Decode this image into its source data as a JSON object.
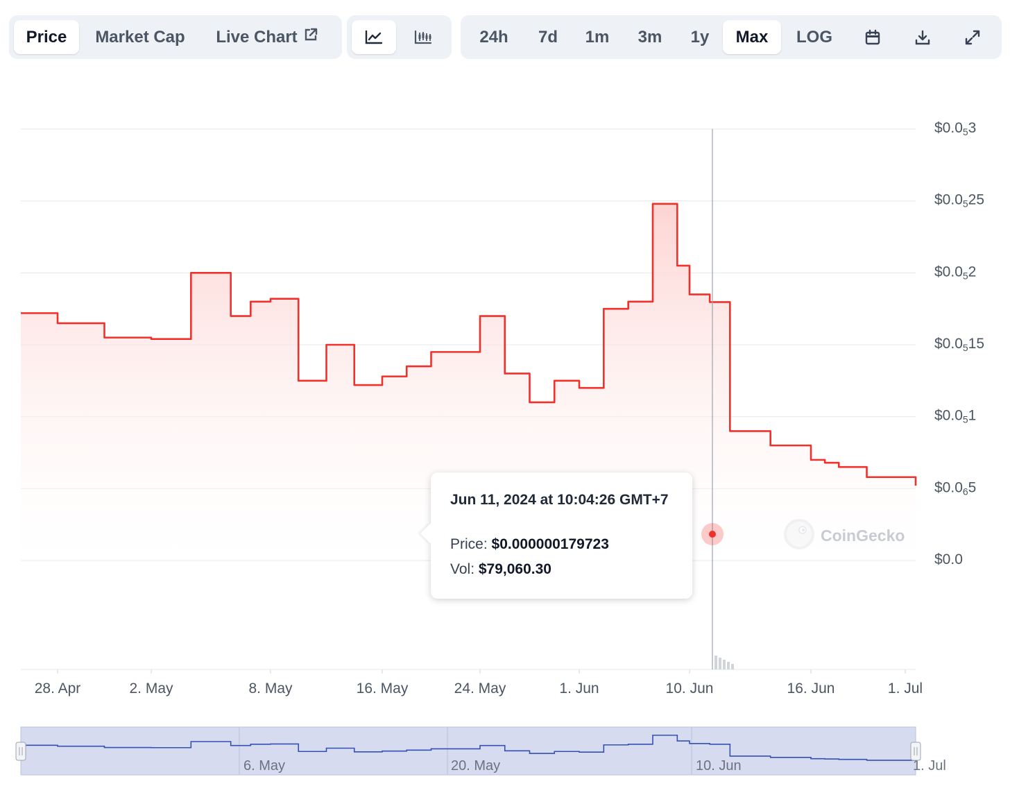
{
  "toolbar": {
    "view_tabs": [
      {
        "label": "Price",
        "active": true
      },
      {
        "label": "Market Cap",
        "active": false
      },
      {
        "label": "Live Chart",
        "active": false
      }
    ],
    "chart_type_icons": [
      {
        "icon": "line-chart-icon",
        "active": true
      },
      {
        "icon": "candlestick-chart-icon",
        "active": false
      }
    ],
    "ranges": [
      {
        "label": "24h",
        "active": false
      },
      {
        "label": "7d",
        "active": false
      },
      {
        "label": "1m",
        "active": false
      },
      {
        "label": "3m",
        "active": false
      },
      {
        "label": "1y",
        "active": false
      },
      {
        "label": "Max",
        "active": true
      },
      {
        "label": "LOG",
        "active": false
      }
    ],
    "tool_icons": [
      "calendar-icon",
      "download-icon",
      "expand-icon"
    ]
  },
  "tooltip": {
    "date": "Jun 11, 2024 at 10:04:26 GMT+7",
    "price_label": "Price:",
    "price_value": "$0.000000179723",
    "vol_label": "Vol:",
    "vol_value": "$79,060.30"
  },
  "watermark": "CoinGecko",
  "colors": {
    "line": "#f0302b",
    "fill_top": "#fdd2d0",
    "navigator_fill": "#d6dbef",
    "navigator_line": "#3350b4",
    "axis_text": "#4b5563"
  },
  "chart_data": {
    "type": "area",
    "series": [
      {
        "x_dates": [
          "2024-04-26",
          "2024-04-28",
          "2024-04-30",
          "2024-05-02",
          "2024-05-04",
          "2024-05-06",
          "2024-05-07",
          "2024-05-08",
          "2024-05-10",
          "2024-05-12",
          "2024-05-14",
          "2024-05-16",
          "2024-05-18",
          "2024-05-20",
          "2024-05-22",
          "2024-05-24",
          "2024-05-26",
          "2024-05-28",
          "2024-05-30",
          "2024-06-01",
          "2024-06-03",
          "2024-06-05",
          "2024-06-07",
          "2024-06-09",
          "2024-06-10",
          "2024-06-11",
          "2024-06-12",
          "2024-06-14",
          "2024-06-16",
          "2024-06-18",
          "2024-06-20",
          "2024-06-24",
          "2024-07-01"
        ],
        "values_note": "price in units of 1e-7 USD",
        "values": [
          1.72,
          1.65,
          1.55,
          1.54,
          2.0,
          1.7,
          1.8,
          1.82,
          1.25,
          1.5,
          1.22,
          1.28,
          1.35,
          1.45,
          1.45,
          1.7,
          1.3,
          1.1,
          1.25,
          1.2,
          1.75,
          1.8,
          2.48,
          2.05,
          1.85,
          1.797,
          0.9,
          0.8,
          0.7,
          0.68,
          0.65,
          0.58,
          0.52
        ]
      }
    ],
    "highlight_point": {
      "date": "Jun 11, 2024 at 10:04:26 GMT+7",
      "price": "$0.000000179723",
      "vol": "$79,060.30"
    },
    "y_tick_labels": [
      {
        "lead": "$0.0",
        "sub": "",
        "tail": ""
      },
      {
        "lead": "$0.0",
        "sub": "6",
        "tail": "5"
      },
      {
        "lead": "$0.0",
        "sub": "5",
        "tail": "1"
      },
      {
        "lead": "$0.0",
        "sub": "5",
        "tail": "15"
      },
      {
        "lead": "$0.0",
        "sub": "5",
        "tail": "2"
      },
      {
        "lead": "$0.0",
        "sub": "5",
        "tail": "25"
      },
      {
        "lead": "$0.0",
        "sub": "5",
        "tail": "3"
      }
    ],
    "x_tick_labels": [
      "28. Apr",
      "2. May",
      "8. May",
      "16. May",
      "24. May",
      "1. Jun",
      "10. Jun",
      "16. Jun",
      "1. Jul"
    ],
    "navigator_labels": [
      "6. May",
      "20. May",
      "10. Jun",
      "1. Jul"
    ],
    "grid": true
  }
}
